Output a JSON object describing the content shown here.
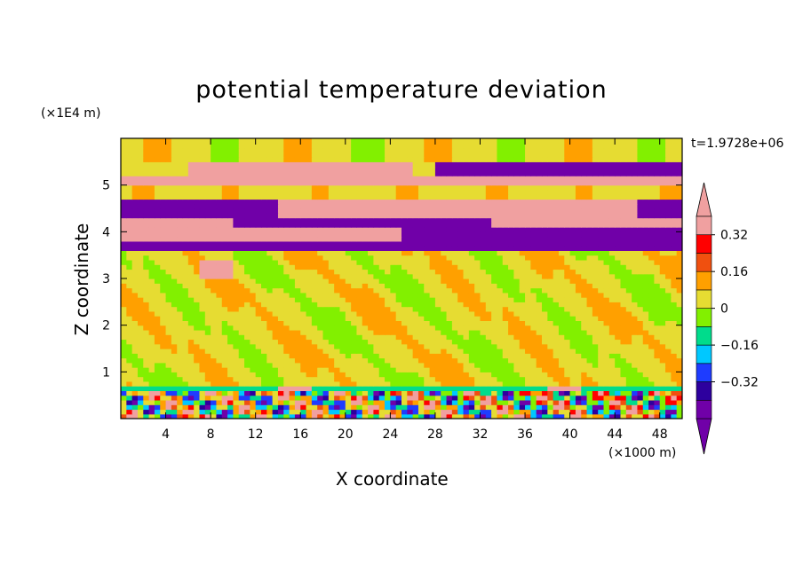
{
  "title": "potential temperature deviation",
  "time_label": "t=1.9728e+06",
  "colors": {
    "levels": [
      "#7000a8",
      "#2d009e",
      "#1e3cff",
      "#00c8ff",
      "#00dc8c",
      "#82f000",
      "#e6dc32",
      "#ffa000",
      "#f0500f",
      "#ff0000",
      "#f0a0a0"
    ]
  },
  "chart_data": {
    "type": "heatmap",
    "title": "potential temperature deviation",
    "xlabel": "X coordinate",
    "ylabel": "Z coordinate",
    "x_unit": "(×1000 m)",
    "z_unit": "(×1E4 m)",
    "xlim": [
      0,
      50
    ],
    "ylim": [
      0,
      6
    ],
    "x_ticks": [
      4,
      8,
      12,
      16,
      20,
      24,
      28,
      32,
      36,
      40,
      44,
      48
    ],
    "y_ticks": [
      1,
      2,
      3,
      4,
      5
    ],
    "colorbar": {
      "levels": [
        -0.4,
        -0.32,
        -0.24,
        -0.16,
        -0.08,
        0,
        0.08,
        0.16,
        0.24,
        0.32,
        0.4
      ],
      "tick_labels": [
        "0.32",
        "0.16",
        "0",
        "−0.16",
        "−0.32"
      ],
      "tick_values": [
        0.32,
        0.16,
        0,
        -0.16,
        -0.32
      ],
      "extend": "both"
    },
    "grid": false
  }
}
